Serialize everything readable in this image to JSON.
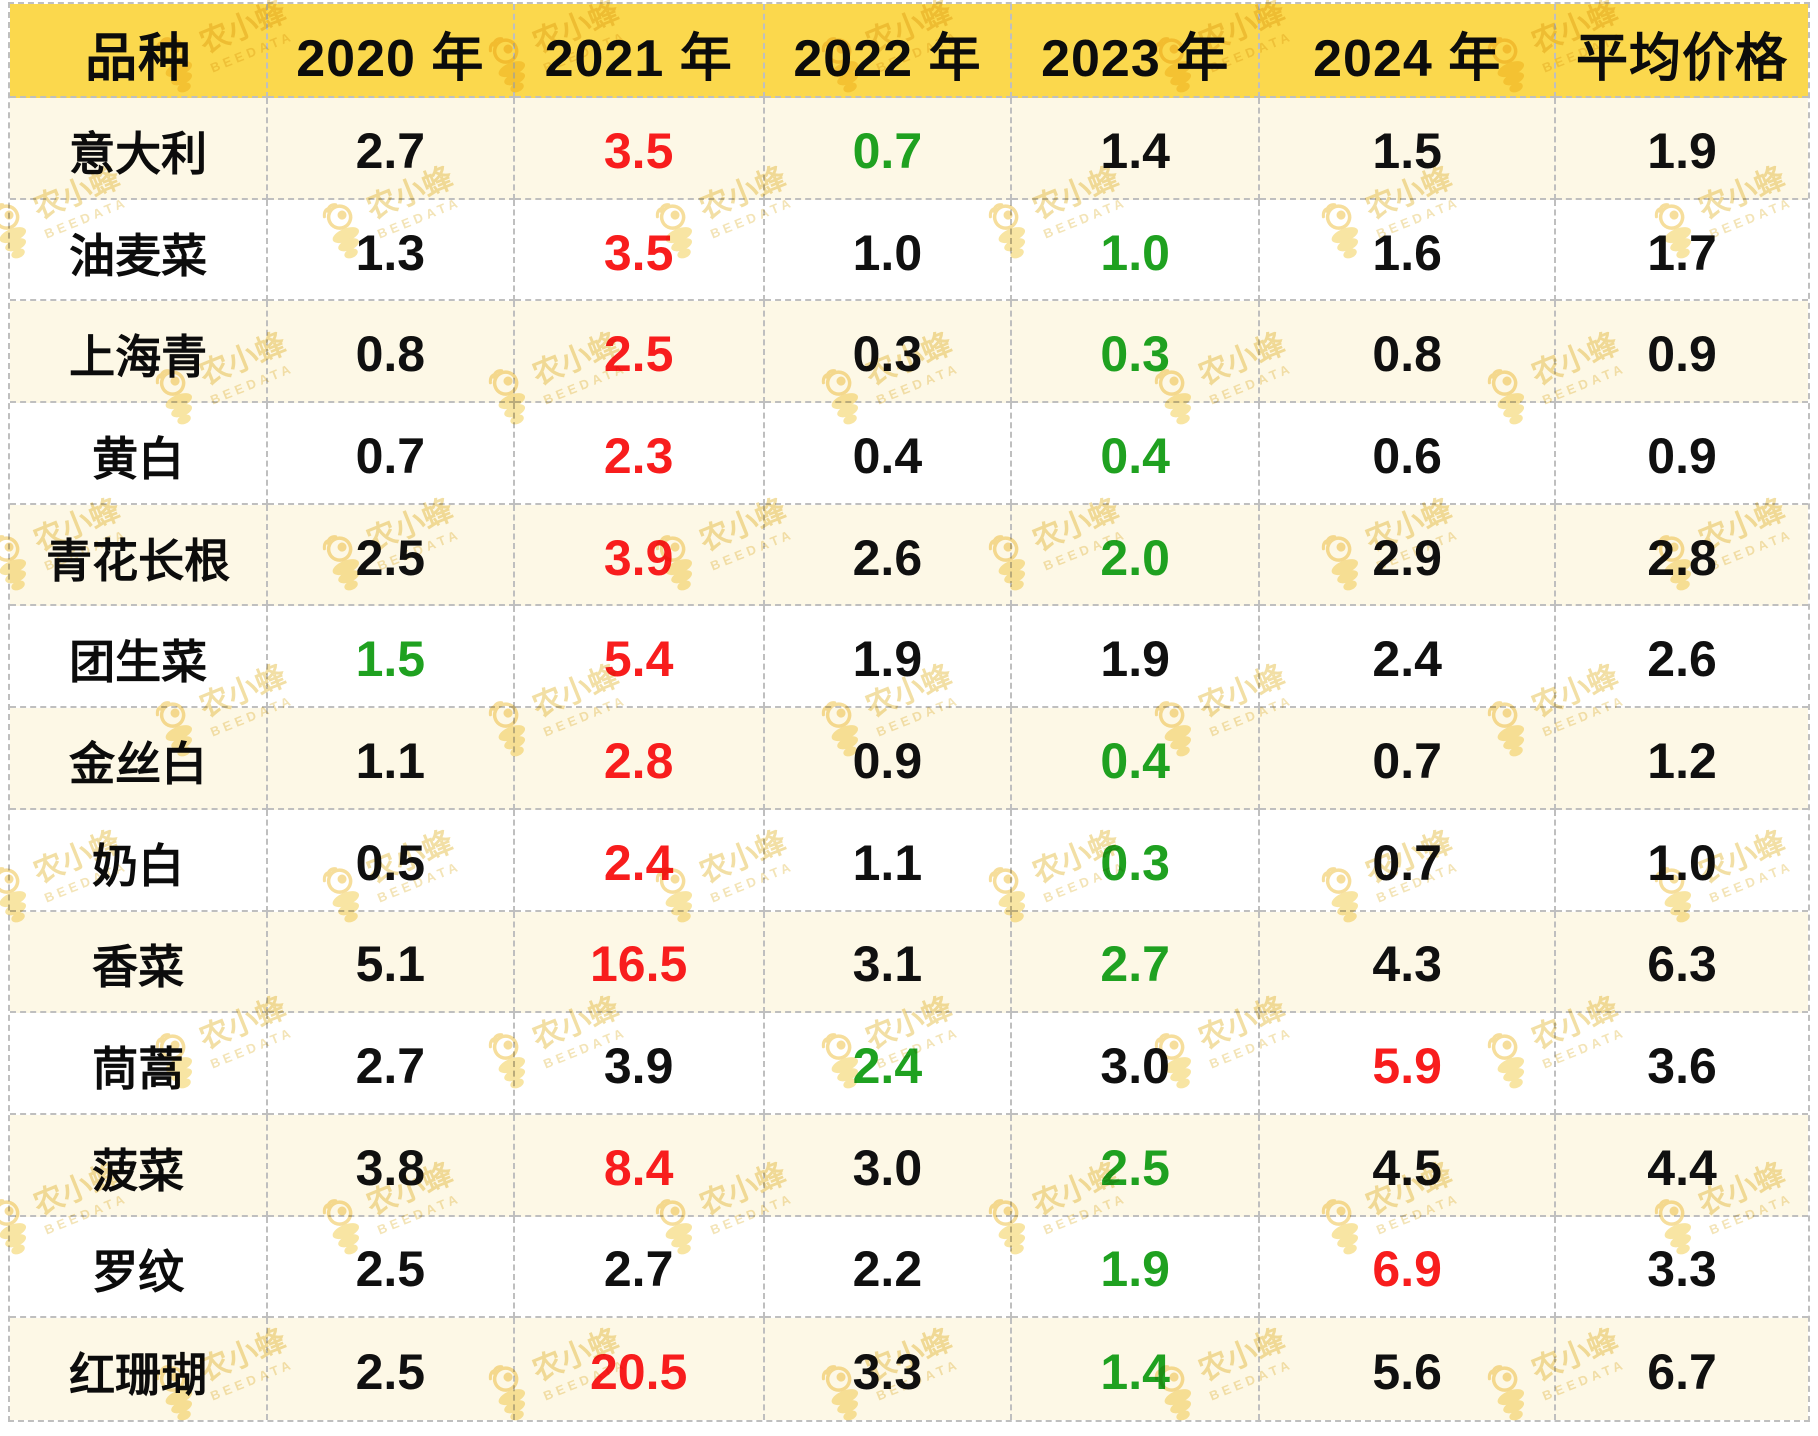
{
  "watermark": {
    "brand": "农小蜂",
    "brand_en": "BEEDATA"
  },
  "colors": {
    "header_bg": "#fbd84d",
    "row_cream_bg": "#fdf8e6",
    "row_white_bg": "#ffffff",
    "text_black": "#101010",
    "value_red": "#f81d1d",
    "value_green": "#1fa120",
    "grid_border": "#bfbfbf",
    "watermark_gold": "#eec24a"
  },
  "chart_data": {
    "type": "table",
    "columns": [
      "品种",
      "2020 年",
      "2021 年",
      "2022 年",
      "2023 年",
      "2024 年",
      "平均价格"
    ],
    "rows": [
      {
        "name": "意大利",
        "values": [
          "2.7",
          "3.5",
          "0.7",
          "1.4",
          "1.5",
          "1.9"
        ],
        "colors": [
          "black",
          "red",
          "green",
          "black",
          "black",
          "black"
        ]
      },
      {
        "name": "油麦菜",
        "values": [
          "1.3",
          "3.5",
          "1.0",
          "1.0",
          "1.6",
          "1.7"
        ],
        "colors": [
          "black",
          "red",
          "black",
          "green",
          "black",
          "black"
        ]
      },
      {
        "name": "上海青",
        "values": [
          "0.8",
          "2.5",
          "0.3",
          "0.3",
          "0.8",
          "0.9"
        ],
        "colors": [
          "black",
          "red",
          "black",
          "green",
          "black",
          "black"
        ]
      },
      {
        "name": "黄白",
        "values": [
          "0.7",
          "2.3",
          "0.4",
          "0.4",
          "0.6",
          "0.9"
        ],
        "colors": [
          "black",
          "red",
          "black",
          "green",
          "black",
          "black"
        ]
      },
      {
        "name": "青花长根",
        "values": [
          "2.5",
          "3.9",
          "2.6",
          "2.0",
          "2.9",
          "2.8"
        ],
        "colors": [
          "black",
          "red",
          "black",
          "green",
          "black",
          "black"
        ]
      },
      {
        "name": "团生菜",
        "values": [
          "1.5",
          "5.4",
          "1.9",
          "1.9",
          "2.4",
          "2.6"
        ],
        "colors": [
          "green",
          "red",
          "black",
          "black",
          "black",
          "black"
        ]
      },
      {
        "name": "金丝白",
        "values": [
          "1.1",
          "2.8",
          "0.9",
          "0.4",
          "0.7",
          "1.2"
        ],
        "colors": [
          "black",
          "red",
          "black",
          "green",
          "black",
          "black"
        ]
      },
      {
        "name": "奶白",
        "values": [
          "0.5",
          "2.4",
          "1.1",
          "0.3",
          "0.7",
          "1.0"
        ],
        "colors": [
          "black",
          "red",
          "black",
          "green",
          "black",
          "black"
        ]
      },
      {
        "name": "香菜",
        "values": [
          "5.1",
          "16.5",
          "3.1",
          "2.7",
          "4.3",
          "6.3"
        ],
        "colors": [
          "black",
          "red",
          "black",
          "green",
          "black",
          "black"
        ]
      },
      {
        "name": "茼蒿",
        "values": [
          "2.7",
          "3.9",
          "2.4",
          "3.0",
          "5.9",
          "3.6"
        ],
        "colors": [
          "black",
          "black",
          "green",
          "black",
          "red",
          "black"
        ]
      },
      {
        "name": "菠菜",
        "values": [
          "3.8",
          "8.4",
          "3.0",
          "2.5",
          "4.5",
          "4.4"
        ],
        "colors": [
          "black",
          "red",
          "black",
          "green",
          "black",
          "black"
        ]
      },
      {
        "name": "罗纹",
        "values": [
          "2.5",
          "2.7",
          "2.2",
          "1.9",
          "6.9",
          "3.3"
        ],
        "colors": [
          "black",
          "black",
          "black",
          "green",
          "red",
          "black"
        ]
      },
      {
        "name": "红珊瑚",
        "values": [
          "2.5",
          "20.5",
          "3.3",
          "1.4",
          "5.6",
          "6.7"
        ],
        "colors": [
          "black",
          "red",
          "black",
          "green",
          "black",
          "black"
        ]
      }
    ]
  }
}
